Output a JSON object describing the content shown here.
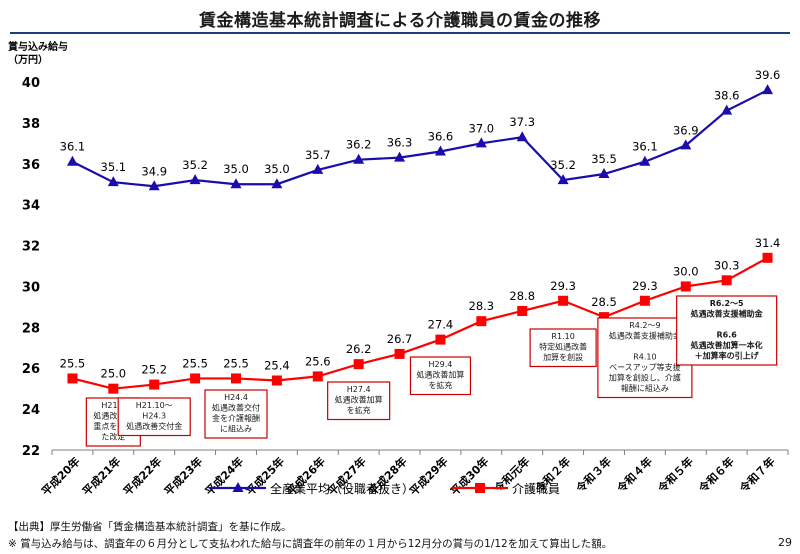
{
  "page": {
    "title": "賃金構造基本統計調査による介護職員の賃金の推移",
    "footer_source": "【出典】厚生労働省「賃金構造基本統計調査」を基に作成。",
    "footer_note": "※ 賞与込み給与は、調査年の６月分として支払われた給与に調査年の前年の１月から12月分の賞与の1/12を加えて算出した額。",
    "page_number": "29"
  },
  "chart_data": {
    "type": "line",
    "ylabel": [
      "賞与込み給与",
      "（万円）"
    ],
    "ylim": [
      22,
      40
    ],
    "yticks": [
      22,
      24,
      26,
      28,
      30,
      32,
      34,
      36,
      38,
      40
    ],
    "grid": false,
    "legend_position": "bottom",
    "categories": [
      "平成20年",
      "平成21年",
      "平成22年",
      "平成23年",
      "平成24年",
      "平成25年",
      "平成26年",
      "平成27年",
      "平成28年",
      "平成29年",
      "平成30年",
      "令和元年",
      "令和２年",
      "令和３年",
      "令和４年",
      "令和５年",
      "令和６年",
      "令和７年"
    ],
    "series": [
      {
        "name": "全産業平均（役職者抜き）",
        "color": "#1a0dab",
        "marker": "triangle",
        "values": [
          36.1,
          35.1,
          34.9,
          35.2,
          35.0,
          35.0,
          35.7,
          36.2,
          36.3,
          36.6,
          37.0,
          37.3,
          35.2,
          35.5,
          36.1,
          36.9,
          38.6,
          39.6
        ],
        "labels": [
          "36.1",
          "35.1",
          "34.9",
          "35.2",
          "35.0",
          "35.0",
          "35.7",
          "36.2",
          "36.3",
          "36.6",
          "37.0",
          "37.3",
          "35.2",
          "35.5",
          "36.1",
          "36.9",
          "38.6",
          "39.6"
        ]
      },
      {
        "name": "介護職員",
        "color": "#ff0000",
        "marker": "square",
        "values": [
          25.5,
          25.0,
          25.2,
          25.5,
          25.5,
          25.4,
          25.6,
          26.2,
          26.7,
          27.4,
          28.3,
          28.8,
          29.3,
          28.5,
          29.3,
          30.0,
          30.3,
          31.4
        ],
        "labels": [
          "25.5",
          "25.0",
          "25.2",
          "25.5",
          "25.5",
          "25.4",
          "25.6",
          "26.2",
          "26.7",
          "27.4",
          "28.3",
          "28.8",
          "29.3",
          "28.5",
          "29.3",
          "30.0",
          "30.3",
          "31.4"
        ]
      }
    ],
    "annotations": [
      {
        "lines": [
          "H21.4",
          "処遇改善に",
          "重点をおい",
          "た改定"
        ],
        "color": "#cc0000",
        "bold": false
      },
      {
        "lines": [
          "H21.10～",
          "H24.3",
          "処遇改善交付金"
        ],
        "color": "#cc0000",
        "bold": false
      },
      {
        "lines": [
          "H24.4",
          "処遇改善交付",
          "金を介護報酬",
          "に組込み"
        ],
        "color": "#cc0000",
        "bold": false
      },
      {
        "lines": [
          "H27.4",
          "処遇改善加算",
          "を拡充"
        ],
        "color": "#cc0000",
        "bold": false
      },
      {
        "lines": [
          "H29.4",
          "処遇改善加算",
          "を拡充"
        ],
        "color": "#cc0000",
        "bold": false
      },
      {
        "lines": [
          "R1.10",
          "特定処遇改善",
          "加算を創設"
        ],
        "color": "#cc0000",
        "bold": false
      },
      {
        "lines": [
          "R4.2～9",
          "処遇改善支援補助金",
          "",
          "R4.10",
          "ベースアップ等支援",
          "加算を創設し、介護",
          "報酬に組込み"
        ],
        "color": "#cc0000",
        "bold": false
      },
      {
        "lines": [
          "R6.2～5",
          "処遇改善支援補助金",
          "",
          "R6.6",
          "処遇改善加算一本化",
          "＋加算率の引上げ"
        ],
        "color": "#cc0000",
        "bold": true
      }
    ]
  }
}
